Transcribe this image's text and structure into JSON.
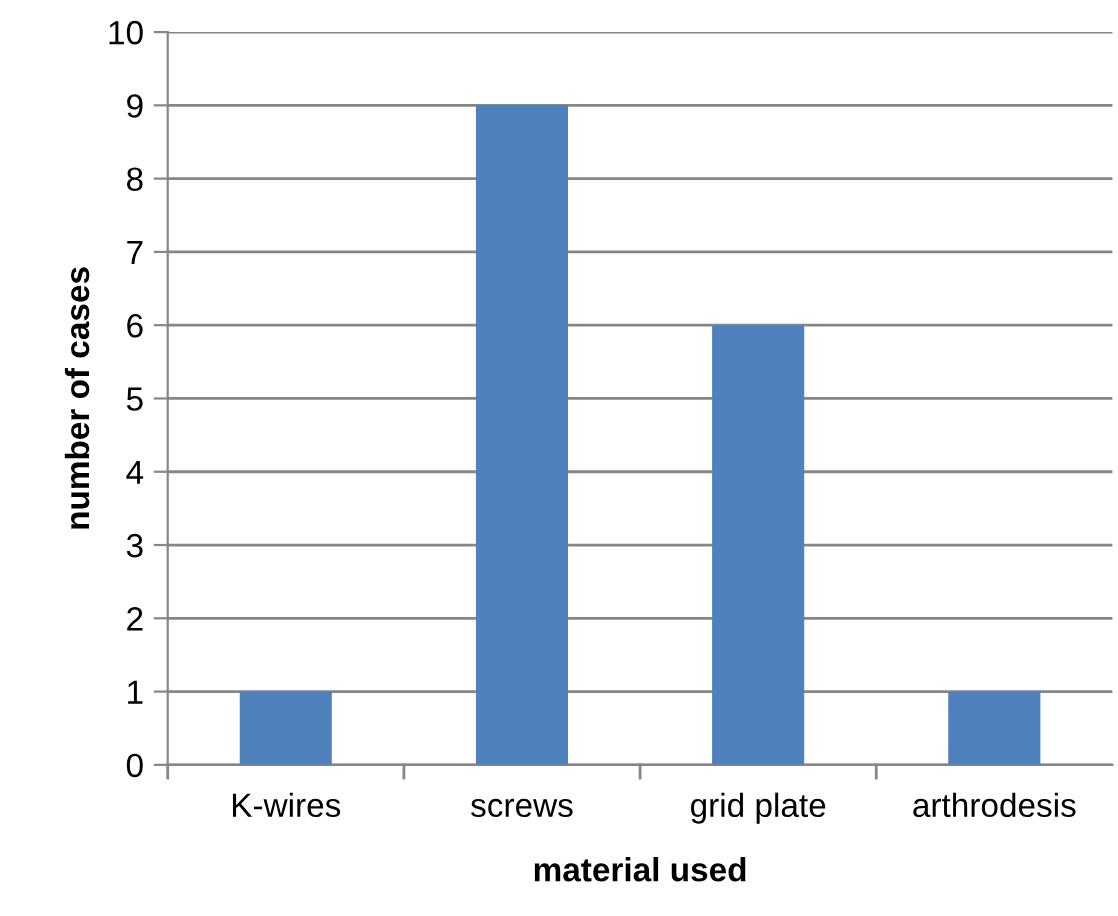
{
  "chart_data": {
    "type": "bar",
    "xlabel": "material used",
    "ylabel": "number of cases",
    "categories": [
      "K-wires",
      "screws",
      "grid plate",
      "arthrodesis"
    ],
    "values": [
      1,
      9,
      6,
      1
    ],
    "color": "#4f81bd",
    "ylim": [
      0,
      10
    ],
    "yticks": [
      0,
      1,
      2,
      3,
      4,
      5,
      6,
      7,
      8,
      9,
      10
    ],
    "grid": "y",
    "legend": false
  }
}
